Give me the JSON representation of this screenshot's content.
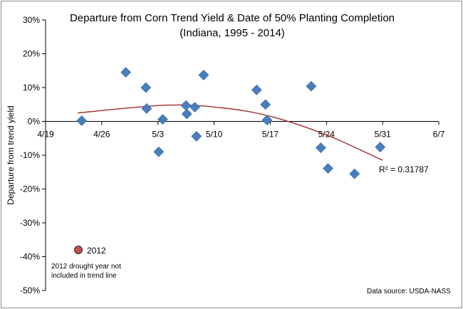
{
  "chart_data": {
    "type": "scatter",
    "title": "Departure from Corn Trend Yield & Date of 50% Planting Completion",
    "subtitle": "(Indiana, 1995 - 2014)",
    "xlabel": "",
    "ylabel": "Departure from trend yield",
    "x_tick_labels": [
      "4/19",
      "4/26",
      "5/3",
      "5/10",
      "5/17",
      "5/24",
      "5/31",
      "6/7"
    ],
    "x_ticks_day_of_year": [
      109,
      116,
      123,
      130,
      137,
      144,
      151,
      158
    ],
    "xlim_day_of_year": [
      109,
      158
    ],
    "y_tick_labels": [
      "30%",
      "20%",
      "10%",
      "0%",
      "-10%",
      "-20%",
      "-30%",
      "-40%",
      "-50%"
    ],
    "y_ticks": [
      30,
      20,
      10,
      0,
      -10,
      -20,
      -30,
      -40,
      -50
    ],
    "ylim": [
      -50,
      30
    ],
    "grid": false,
    "series": [
      {
        "name": "",
        "marker": "diamond",
        "color": "#4a7ebb",
        "points_day_of_year": [
          [
            113.5,
            0.2
          ],
          [
            119.0,
            14.5
          ],
          [
            121.5,
            10.0
          ],
          [
            121.6,
            3.8
          ],
          [
            123.1,
            -9.0
          ],
          [
            123.6,
            0.6
          ],
          [
            126.5,
            4.7
          ],
          [
            126.6,
            2.2
          ],
          [
            127.6,
            4.2
          ],
          [
            127.8,
            -4.4
          ],
          [
            128.7,
            13.7
          ],
          [
            135.3,
            9.3
          ],
          [
            136.4,
            5.0
          ],
          [
            136.6,
            0.4
          ],
          [
            142.1,
            10.4
          ],
          [
            143.3,
            -7.8
          ],
          [
            144.2,
            -13.9
          ],
          [
            147.5,
            -15.5
          ],
          [
            150.7,
            -7.6
          ]
        ]
      }
    ],
    "trendline": {
      "type": "polynomial",
      "color": "#a0302a",
      "x_range_day_of_year": [
        113,
        151
      ],
      "control_points": [
        [
          113,
          2.5
        ],
        [
          124,
          4.8
        ],
        [
          131,
          4.0
        ],
        [
          137,
          1.5
        ],
        [
          144,
          -4.0
        ],
        [
          151,
          -11.5
        ]
      ],
      "r_squared_label": "R² = 0.31787"
    },
    "excluded_point": {
      "label": "2012",
      "y": -38,
      "color": "#c0504d",
      "note_lines": [
        "2012 drought year not",
        "included in trend line"
      ]
    },
    "source": "Data source: USDA-NASS"
  }
}
